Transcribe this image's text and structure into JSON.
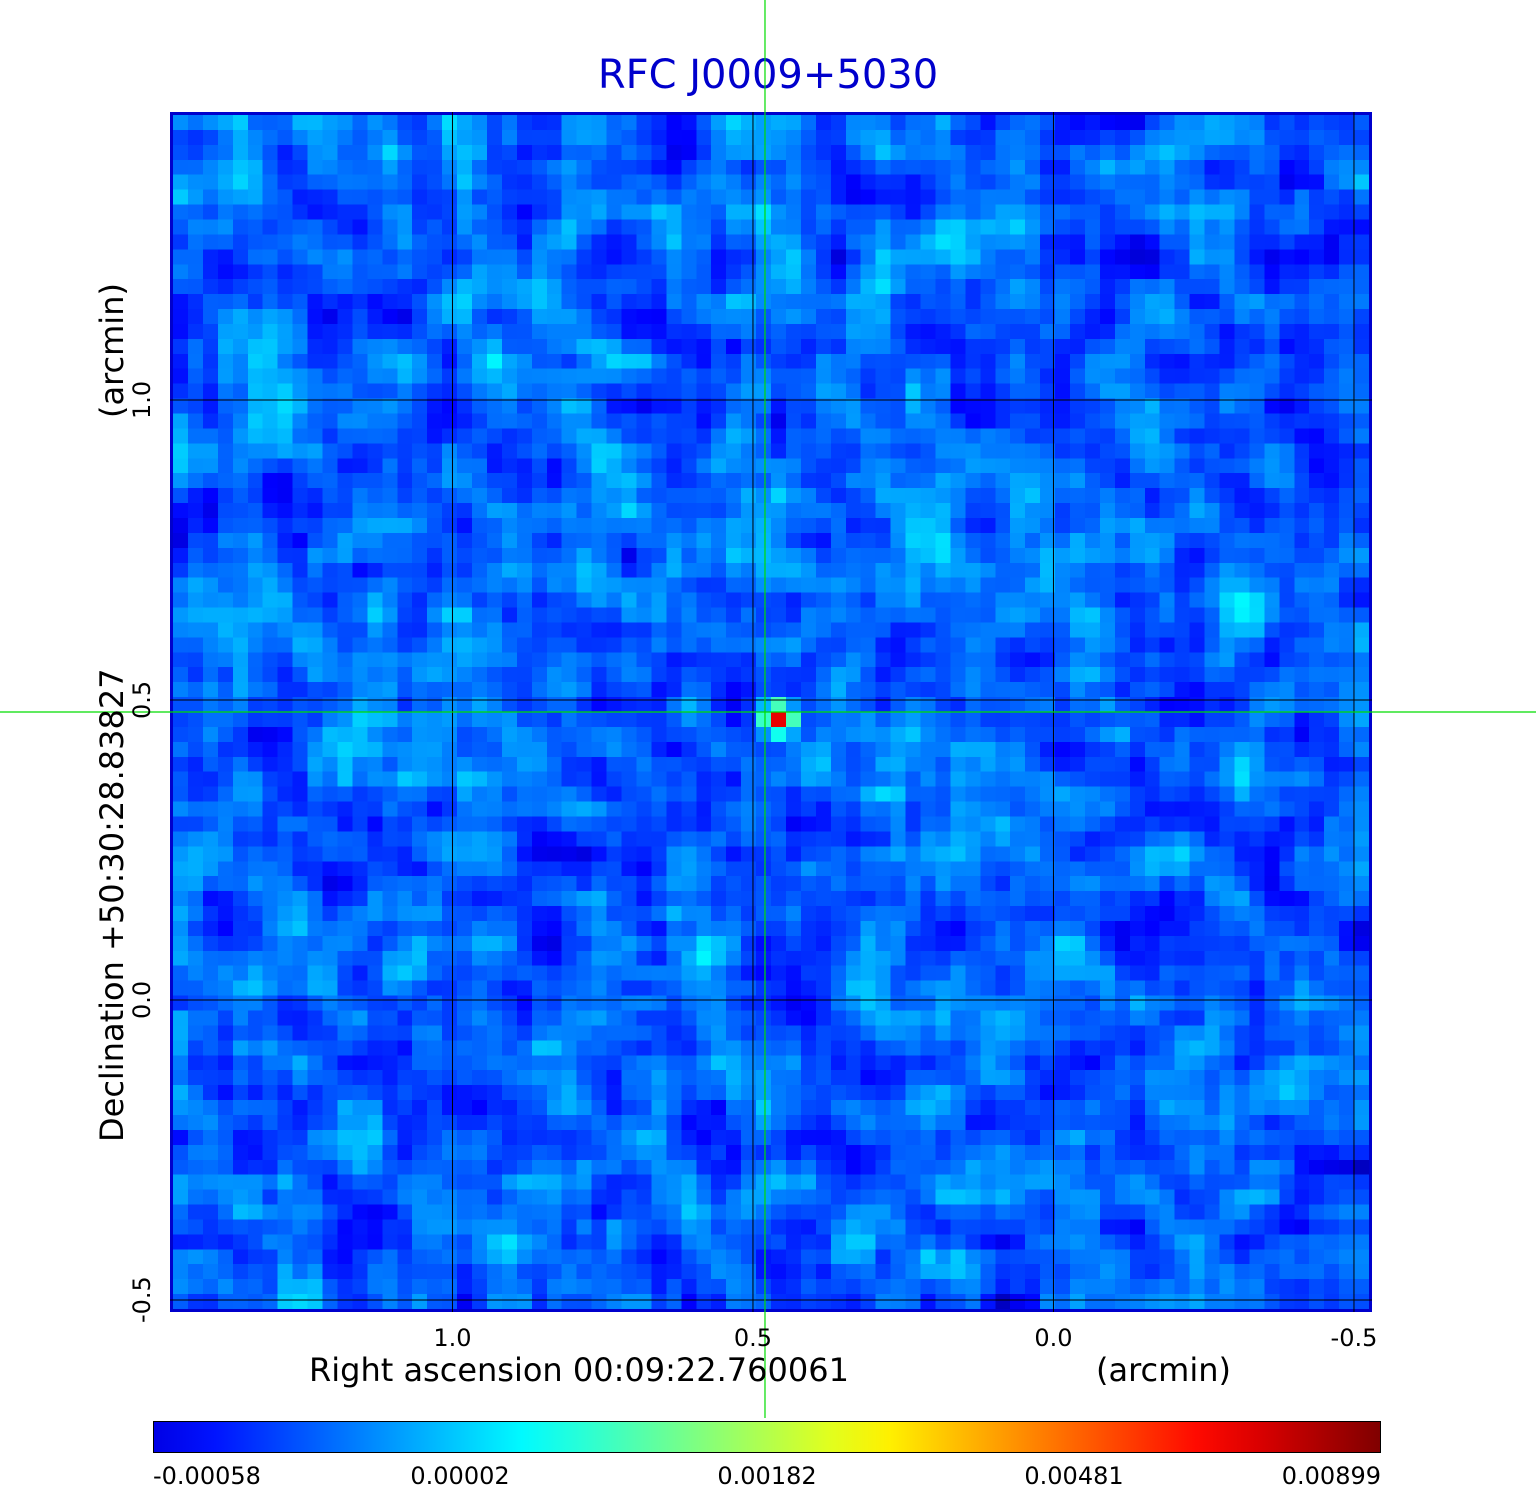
{
  "title": "RFC J0009+5030",
  "title_color": "#0000cc",
  "chart_data": {
    "type": "heatmap",
    "title": "RFC J0009+5030",
    "xlabel": "Right ascension  00:09:22.760061",
    "xunit": "(arcmin)",
    "ylabel": "Declination  +50:30:28.83827",
    "yunit": "(arcmin)",
    "x_ticks": [
      1.0,
      0.5,
      0.0,
      -0.5
    ],
    "x_tick_labels": [
      "1.0",
      "0.5",
      "0.0",
      "-0.5"
    ],
    "y_ticks": [
      1.0,
      0.5,
      0.0,
      -0.5
    ],
    "y_tick_labels": [
      "1.0",
      "0.5",
      "0.0",
      "-0.5"
    ],
    "xlim": [
      1.47,
      -0.53
    ],
    "ylim": [
      -0.52,
      1.48
    ],
    "grid": true,
    "source_peak": {
      "x": 0.48,
      "y": 0.48,
      "value": 0.00899
    },
    "crosshair": {
      "x": 0.48,
      "y": 0.48,
      "color": "#00dd00"
    },
    "background_level": 2e-05,
    "colormap": "jet",
    "colorbar": {
      "tick_labels": [
        "-0.00058",
        "0.00002",
        "0.00182",
        "0.00481",
        "0.00899"
      ],
      "placement": "bottom"
    }
  }
}
